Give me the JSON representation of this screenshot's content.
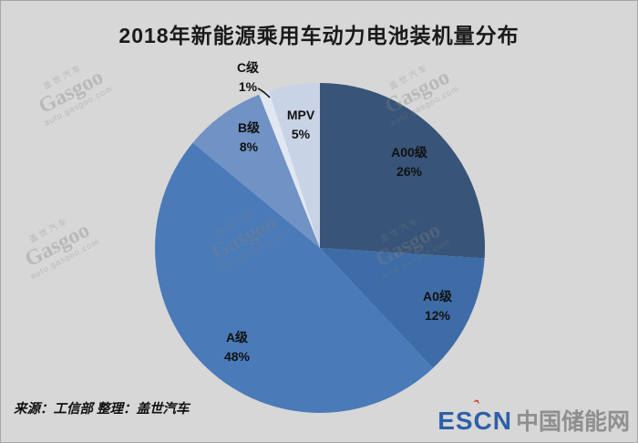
{
  "title": "2018年新能源乘用车动力电池装机量分布",
  "source_line": "来源：工信部  整理：盖世汽车",
  "logo": {
    "escn": "ESCN",
    "accent": "ˆ",
    "cn": "中国储能网",
    "escn_color": "#2E5FA8",
    "accent_color": "#D43A2A",
    "cn_color": "#8F8F8F"
  },
  "watermark": {
    "brand_cn": "盖世汽车",
    "brand_en": "Gasgoo",
    "url": "auto.gasgoo.com"
  },
  "colors": {
    "background": "#D7D7D7",
    "title_text": "#1A1A1A",
    "label_text": "#111111"
  },
  "chart_data": {
    "type": "pie",
    "title": "2018年新能源乘用车动力电池装机量分布",
    "unit": "%",
    "direction": "clockwise",
    "start_angle_deg": 0,
    "legend_position": "none",
    "slices": [
      {
        "label": "A00级",
        "value": 26,
        "color": "#385478"
      },
      {
        "label": "A0级",
        "value": 12,
        "color": "#3E6CA6"
      },
      {
        "label": "A级",
        "value": 48,
        "color": "#4A7AB8"
      },
      {
        "label": "B级",
        "value": 8,
        "color": "#7092C5"
      },
      {
        "label": "C级",
        "value": 1,
        "color": "#E1E7F1"
      },
      {
        "label": "MPV",
        "value": 5,
        "color": "#C8D3E6"
      }
    ],
    "label_format": "{label} {value}%"
  }
}
